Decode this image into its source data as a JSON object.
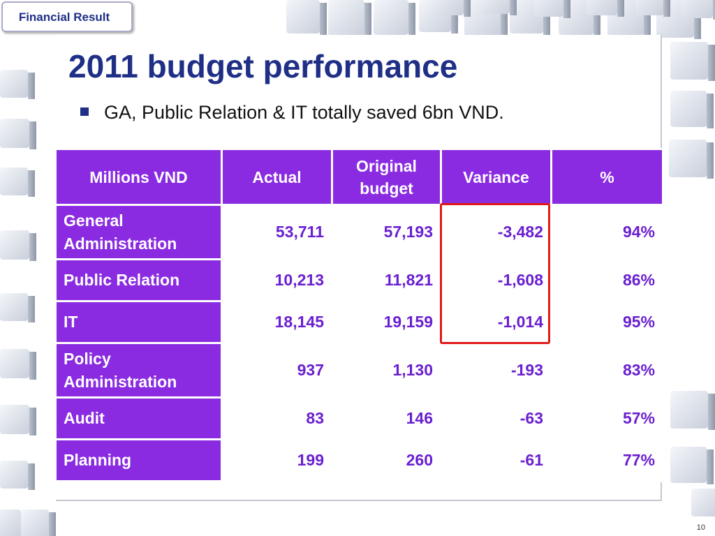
{
  "section_tag": "Financial Result",
  "title": "2011 budget performance",
  "bullet": "GA, Public Relation & IT totally saved 6bn VND.",
  "table": {
    "headers": [
      "Millions VND",
      "Actual",
      "Original budget",
      "Variance",
      "%"
    ],
    "rows": [
      {
        "label": "General Administration",
        "actual": "53,711",
        "budget": "57,193",
        "variance": "-3,482",
        "pct": "94%"
      },
      {
        "label": "Public Relation",
        "actual": "10,213",
        "budget": "11,821",
        "variance": "-1,608",
        "pct": "86%"
      },
      {
        "label": "IT",
        "actual": "18,145",
        "budget": "19,159",
        "variance": "-1,014",
        "pct": "95%"
      },
      {
        "label": "Policy Administration",
        "actual": "937",
        "budget": "1,130",
        "variance": "-193",
        "pct": "83%"
      },
      {
        "label": "Audit",
        "actual": "83",
        "budget": "146",
        "variance": "-63",
        "pct": "57%"
      },
      {
        "label": "Planning",
        "actual": "199",
        "budget": "260",
        "variance": "-61",
        "pct": "77%"
      }
    ]
  },
  "page_number": "10",
  "colors": {
    "header_bg": "#8a2be2",
    "value_text": "#6a1fd0",
    "title": "#1f2f86",
    "highlight": "#e01a1a"
  }
}
